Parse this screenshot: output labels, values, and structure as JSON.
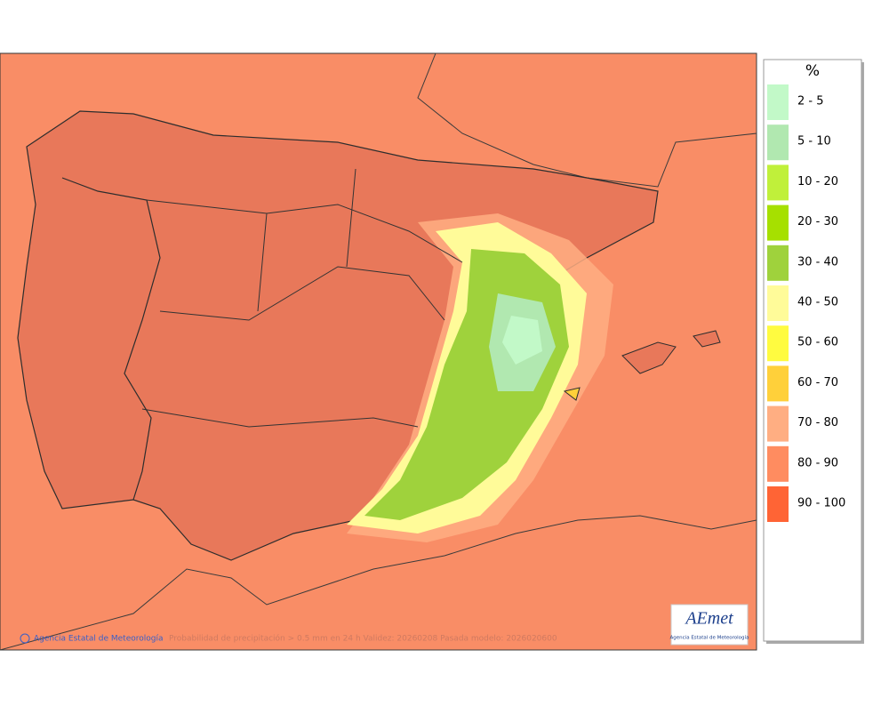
{
  "map": {
    "footer": {
      "copyright": "Agencia Estatal de Meteorología",
      "caption": "Probabilidad de precipitación > 0.5 mm en 24 h Validez: 20260208 Pasada modelo: 2026020600"
    },
    "logo": {
      "name": "AEmet",
      "subtitle": "Agencia Estatal de Meteorología"
    }
  },
  "legend": {
    "title": "%",
    "items": [
      {
        "label": "2 - 5",
        "color": "#c2f9c8"
      },
      {
        "label": "5 - 10",
        "color": "#b1e8b0"
      },
      {
        "label": "10 - 20",
        "color": "#c0f03a"
      },
      {
        "label": "20 - 30",
        "color": "#a6e000"
      },
      {
        "label": "30 - 40",
        "color": "#9fd23c"
      },
      {
        "label": "40 - 50",
        "color": "#fffb99"
      },
      {
        "label": "50 - 60",
        "color": "#fffb40"
      },
      {
        "label": "60 - 70",
        "color": "#ffd03a"
      },
      {
        "label": "70 - 80",
        "color": "#ffae82"
      },
      {
        "label": "80 - 90",
        "color": "#ff8c60"
      },
      {
        "label": "90 - 100",
        "color": "#ff6435"
      }
    ]
  }
}
